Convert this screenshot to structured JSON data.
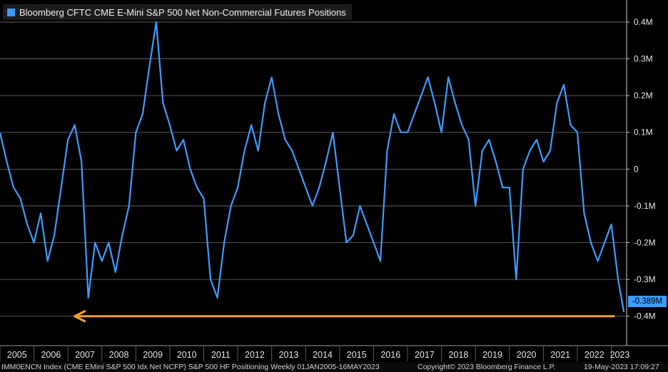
{
  "chart_data": {
    "type": "line",
    "title": "",
    "legend": [
      "Bloomberg CFTC CME E-Mini S&P 500 Net Non-Commercial Futures Positions"
    ],
    "series": [
      {
        "name": "Bloomberg CFTC CME E-Mini S&P 500 Net Non-Commercial Futures Positions",
        "color": "#3d9cff",
        "x": [
          2005.0,
          2005.2,
          2005.4,
          2005.6,
          2005.8,
          2006.0,
          2006.2,
          2006.4,
          2006.6,
          2006.8,
          2007.0,
          2007.2,
          2007.4,
          2007.6,
          2007.8,
          2008.0,
          2008.2,
          2008.4,
          2008.6,
          2008.8,
          2009.0,
          2009.2,
          2009.4,
          2009.6,
          2009.8,
          2010.0,
          2010.2,
          2010.4,
          2010.6,
          2010.8,
          2011.0,
          2011.2,
          2011.4,
          2011.6,
          2011.8,
          2012.0,
          2012.2,
          2012.4,
          2012.6,
          2012.8,
          2013.0,
          2013.2,
          2013.4,
          2013.6,
          2013.8,
          2014.0,
          2014.2,
          2014.4,
          2014.6,
          2014.8,
          2015.0,
          2015.2,
          2015.4,
          2015.6,
          2015.8,
          2016.0,
          2016.2,
          2016.4,
          2016.6,
          2016.8,
          2017.0,
          2017.2,
          2017.4,
          2017.6,
          2017.8,
          2018.0,
          2018.2,
          2018.4,
          2018.6,
          2018.8,
          2019.0,
          2019.2,
          2019.4,
          2019.6,
          2019.8,
          2020.0,
          2020.2,
          2020.4,
          2020.6,
          2020.8,
          2021.0,
          2021.2,
          2021.4,
          2021.6,
          2021.8,
          2022.0,
          2022.2,
          2022.4,
          2022.6,
          2022.8,
          2023.0,
          2023.2,
          2023.37
        ],
        "y": [
          0.1,
          0.02,
          -0.05,
          -0.08,
          -0.15,
          -0.2,
          -0.12,
          -0.25,
          -0.18,
          -0.05,
          0.08,
          0.12,
          0.02,
          -0.35,
          -0.2,
          -0.25,
          -0.2,
          -0.28,
          -0.18,
          -0.1,
          0.1,
          0.15,
          0.28,
          0.4,
          0.18,
          0.12,
          0.05,
          0.08,
          0.0,
          -0.05,
          -0.08,
          -0.3,
          -0.35,
          -0.2,
          -0.1,
          -0.05,
          0.05,
          0.12,
          0.05,
          0.18,
          0.25,
          0.15,
          0.08,
          0.05,
          0.0,
          -0.05,
          -0.1,
          -0.05,
          0.02,
          0.1,
          -0.05,
          -0.2,
          -0.18,
          -0.1,
          -0.15,
          -0.2,
          -0.25,
          0.05,
          0.15,
          0.1,
          0.1,
          0.15,
          0.2,
          0.25,
          0.18,
          0.1,
          0.25,
          0.18,
          0.12,
          0.08,
          -0.1,
          0.05,
          0.08,
          0.02,
          -0.05,
          -0.05,
          -0.3,
          0.0,
          0.05,
          0.08,
          0.02,
          0.05,
          0.18,
          0.23,
          0.12,
          0.1,
          -0.12,
          -0.2,
          -0.25,
          -0.2,
          -0.15,
          -0.3,
          -0.389
        ]
      }
    ],
    "y_tick_labels": [
      "0.4M",
      "0.3M",
      "0.2M",
      "0.1M",
      "0",
      "-0.1M",
      "-0.2M",
      "-0.3M",
      "-0.4M"
    ],
    "y_ticks": [
      0.4,
      0.3,
      0.2,
      0.1,
      0,
      -0.1,
      -0.2,
      -0.3,
      -0.4
    ],
    "x_tick_labels": [
      "2005",
      "2006",
      "2007",
      "2008",
      "2009",
      "2010",
      "2011",
      "2012",
      "2013",
      "2014",
      "2015",
      "2016",
      "2017",
      "2018",
      "2019",
      "2020",
      "2021",
      "2022",
      "2023"
    ],
    "ylim": [
      -0.48,
      0.46
    ],
    "xlim": [
      2005.0,
      2023.45
    ],
    "grid": true,
    "legend_position": "top-left",
    "last_value_label": "-0.389M",
    "annotation": {
      "type": "horizontal-arrow",
      "y": -0.4,
      "x_start": 2023.1,
      "x_end": 2007.2,
      "color": "#f5a030"
    },
    "footer_left": "IMM0ENCN Index (CME EMini S&P 500 Idx Net NCFP) S&P 500 HF Positioning  Weekly 01JAN2005-16MAY2023",
    "footer_mid": "Copyright© 2023 Bloomberg Finance L.P.",
    "footer_right": "19-May-2023 17:09:27"
  }
}
